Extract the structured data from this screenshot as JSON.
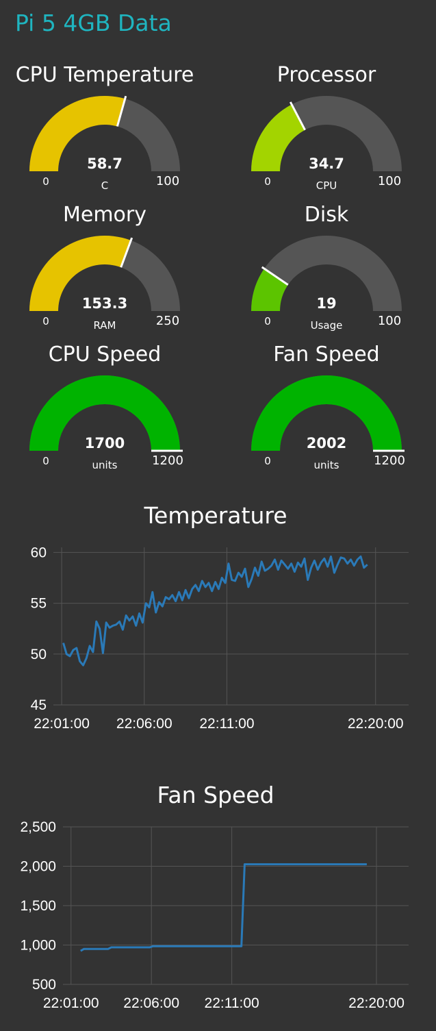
{
  "page": {
    "title": "Pi 5 4GB Data"
  },
  "colors": {
    "background": "#333333",
    "title": "#1fb5c0",
    "gauge_track": "#555555",
    "line_series": "#2a7ab8",
    "grid": "#555555"
  },
  "gauges": [
    {
      "title": "CPU Temperature",
      "value": "58.7",
      "units": "C",
      "min": "0",
      "max": "100",
      "fill_fraction": 0.587,
      "fill_color": "#e6c300"
    },
    {
      "title": "Processor",
      "value": "34.7",
      "units": "CPU",
      "min": "0",
      "max": "100",
      "fill_fraction": 0.347,
      "fill_color": "#a3d400"
    },
    {
      "title": "Memory",
      "value": "153.3",
      "units": "RAM",
      "min": "0",
      "max": "250",
      "fill_fraction": 0.6132,
      "fill_color": "#e6c300"
    },
    {
      "title": "Disk",
      "value": "19",
      "units": "Usage",
      "min": "0",
      "max": "100",
      "fill_fraction": 0.19,
      "fill_color": "#5cc400"
    },
    {
      "title": "CPU Speed",
      "value": "1700",
      "units": "units",
      "min": "0",
      "max": "1200",
      "fill_fraction": 1.0,
      "fill_color": "#00b300"
    },
    {
      "title": "Fan Speed",
      "value": "2002",
      "units": "units",
      "min": "0",
      "max": "1200",
      "fill_fraction": 1.0,
      "fill_color": "#00b300"
    }
  ],
  "chart_data": [
    {
      "type": "line",
      "title": "Temperature",
      "xlabel": "",
      "ylabel": "",
      "x_tick_labels": [
        "22:01:00",
        "22:06:00",
        "22:11:00",
        "22:20:00"
      ],
      "x_tick_minutes": [
        0,
        5,
        10,
        19
      ],
      "xlim_minutes": [
        -0.5,
        21
      ],
      "y_tick_labels": [
        "45",
        "50",
        "55",
        "60"
      ],
      "y_ticks": [
        45,
        50,
        55,
        60
      ],
      "ylim": [
        45,
        60.5
      ],
      "grid": true,
      "legend": "none",
      "series": [
        {
          "x_minutes_from_22:01:00": [
            0.1,
            0.3,
            0.5,
            0.7,
            0.9,
            1.1,
            1.3,
            1.5,
            1.7,
            1.9,
            2.1,
            2.3,
            2.5,
            2.7,
            2.9,
            3.1,
            3.3,
            3.5,
            3.7,
            3.9,
            4.1,
            4.3,
            4.5,
            4.7,
            4.9,
            5.1,
            5.3,
            5.5,
            5.7,
            5.9,
            6.1,
            6.3,
            6.5,
            6.7,
            6.9,
            7.1,
            7.3,
            7.5,
            7.7,
            7.9,
            8.1,
            8.3,
            8.5,
            8.7,
            8.9,
            9.1,
            9.3,
            9.5,
            9.7,
            9.9,
            10.1,
            10.3,
            10.5,
            10.7,
            10.9,
            11.1,
            11.3,
            11.5,
            11.7,
            11.9,
            12.1,
            12.3,
            12.5,
            12.7,
            12.9,
            13.1,
            13.3,
            13.5,
            13.7,
            13.9,
            14.1,
            14.3,
            14.5,
            14.7,
            14.9,
            15.1,
            15.3,
            15.5,
            15.7,
            15.9,
            16.1,
            16.3,
            16.5,
            16.7,
            16.9,
            17.1,
            17.3,
            17.5,
            17.7,
            17.9,
            18.1,
            18.3,
            18.5
          ],
          "values": [
            51.1,
            50.0,
            49.8,
            50.4,
            50.6,
            49.3,
            48.9,
            49.6,
            50.8,
            50.2,
            53.2,
            52.5,
            50.1,
            53.1,
            52.6,
            52.8,
            52.9,
            53.2,
            52.4,
            53.8,
            53.3,
            53.7,
            52.8,
            54.0,
            53.1,
            55.0,
            54.6,
            56.1,
            54.1,
            55.1,
            54.7,
            55.6,
            55.4,
            55.8,
            55.2,
            56.1,
            55.3,
            56.3,
            55.5,
            56.4,
            56.8,
            56.2,
            57.2,
            56.6,
            57.0,
            56.2,
            57.1,
            56.4,
            57.5,
            57.0,
            58.9,
            57.3,
            57.2,
            58.0,
            57.6,
            58.4,
            56.6,
            57.4,
            58.5,
            57.7,
            59.1,
            58.2,
            58.4,
            58.7,
            59.3,
            58.3,
            59.2,
            58.8,
            58.4,
            58.9,
            58.1,
            59.0,
            58.6,
            59.4,
            57.3,
            58.5,
            59.2,
            58.3,
            59.0,
            59.4,
            58.6,
            59.6,
            58.0,
            58.8,
            59.5,
            59.4,
            58.9,
            59.3,
            58.7,
            59.3,
            59.6,
            58.5,
            58.8
          ]
        }
      ]
    },
    {
      "type": "line",
      "title": "Fan Speed",
      "xlabel": "",
      "ylabel": "",
      "x_tick_labels": [
        "22:01:00",
        "22:06:00",
        "22:11:00",
        "22:20:00"
      ],
      "x_tick_minutes": [
        0,
        5,
        10,
        19
      ],
      "xlim_minutes": [
        -0.5,
        21
      ],
      "y_tick_labels": [
        "500",
        "1,000",
        "1,500",
        "2,000",
        "2,500"
      ],
      "y_ticks": [
        500,
        1000,
        1500,
        2000,
        2500
      ],
      "ylim": [
        500,
        2500
      ],
      "grid": true,
      "legend": "none",
      "series": [
        {
          "x_minutes_from_22:01:00": [
            0.6,
            0.8,
            1.0,
            2.3,
            2.5,
            4.9,
            5.1,
            10.6,
            10.8,
            18.4
          ],
          "values": [
            925,
            950,
            950,
            950,
            970,
            970,
            985,
            985,
            2025,
            2025
          ]
        }
      ]
    }
  ]
}
